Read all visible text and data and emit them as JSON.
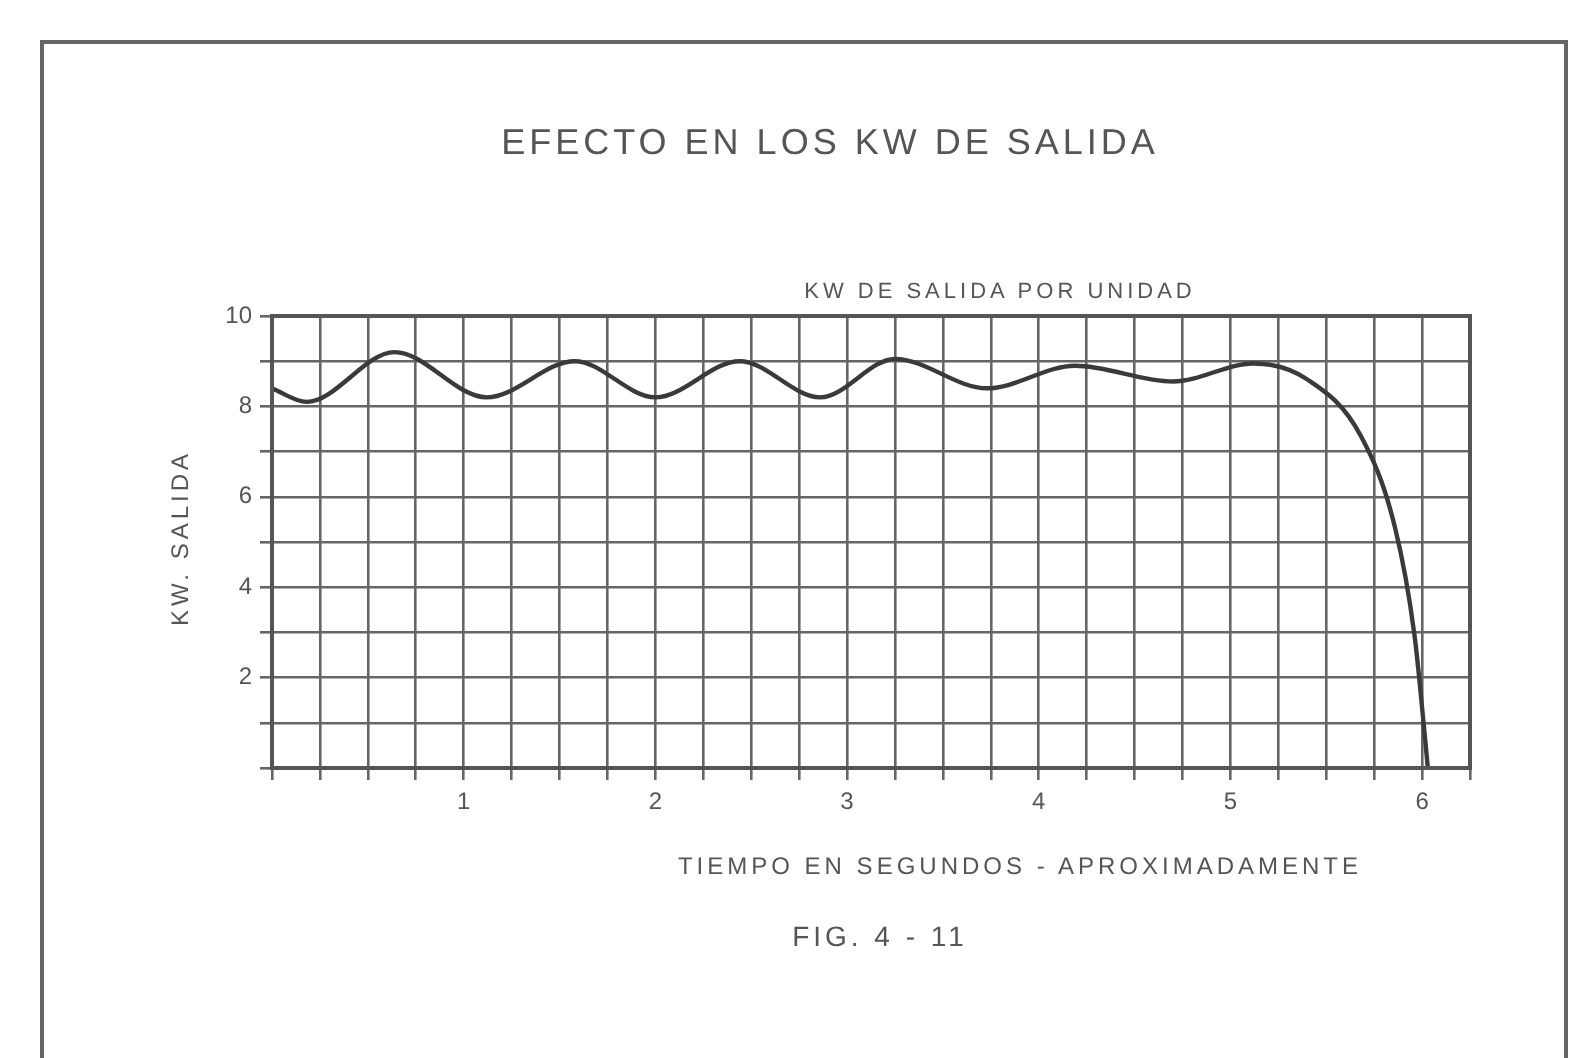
{
  "chart_data": {
    "type": "line",
    "title": "EFECTO EN LOS KW DE SALIDA",
    "xlabel": "TIEMPO EN SEGUNDOS - APROXIMADAMENTE",
    "ylabel": "KW. SALIDA",
    "annotations": [
      "KW DE SALIDA POR UNIDAD",
      "FIG. 4 - 11"
    ],
    "xlim": [
      0,
      6.25
    ],
    "xticks": [
      {
        "value": 0,
        "label": null
      },
      {
        "value": 0.25,
        "label": null
      },
      {
        "value": 0.5,
        "label": null
      },
      {
        "value": 0.75,
        "label": null
      },
      1,
      {
        "value": 1.25,
        "label": null
      },
      {
        "value": 1.5,
        "label": null
      },
      {
        "value": 1.75,
        "label": null
      },
      2,
      {
        "value": 2.25,
        "label": null
      },
      {
        "value": 2.5,
        "label": null
      },
      {
        "value": 2.75,
        "label": null
      },
      3,
      {
        "value": 3.25,
        "label": null
      },
      {
        "value": 3.5,
        "label": null
      },
      {
        "value": 3.75,
        "label": null
      },
      4,
      {
        "value": 4.25,
        "label": null
      },
      {
        "value": 4.5,
        "label": null
      },
      {
        "value": 4.75,
        "label": null
      },
      5,
      {
        "value": 5.25,
        "label": null
      },
      {
        "value": 5.5,
        "label": null
      },
      {
        "value": 5.75,
        "label": null
      },
      6,
      {
        "value": 6.25,
        "label": null
      }
    ],
    "ylim": [
      0,
      10
    ],
    "yticks": [
      {
        "value": 0,
        "label": null
      },
      {
        "value": 1,
        "label": null
      },
      2,
      {
        "value": 3,
        "label": null
      },
      4,
      {
        "value": 5,
        "label": null
      },
      6,
      {
        "value": 7,
        "label": null
      },
      8,
      {
        "value": 9,
        "label": null
      },
      10
    ],
    "grid": true,
    "legend": false,
    "marker": "none",
    "line_style": "solid",
    "series": [
      {
        "color": "#3a3a3a",
        "x": [
          0,
          0.18,
          0.64,
          1.12,
          1.58,
          2.0,
          2.44,
          2.86,
          3.25,
          3.73,
          4.19,
          4.7,
          5.12,
          5.4,
          5.68,
          5.86,
          5.96,
          6.01,
          6.03
        ],
        "values": [
          8.4,
          8.1,
          9.2,
          8.2,
          9.0,
          8.2,
          9.0,
          8.2,
          9.05,
          8.4,
          8.9,
          8.55,
          8.95,
          8.6,
          7.35,
          5.3,
          2.95,
          0.9,
          0
        ]
      }
    ]
  }
}
